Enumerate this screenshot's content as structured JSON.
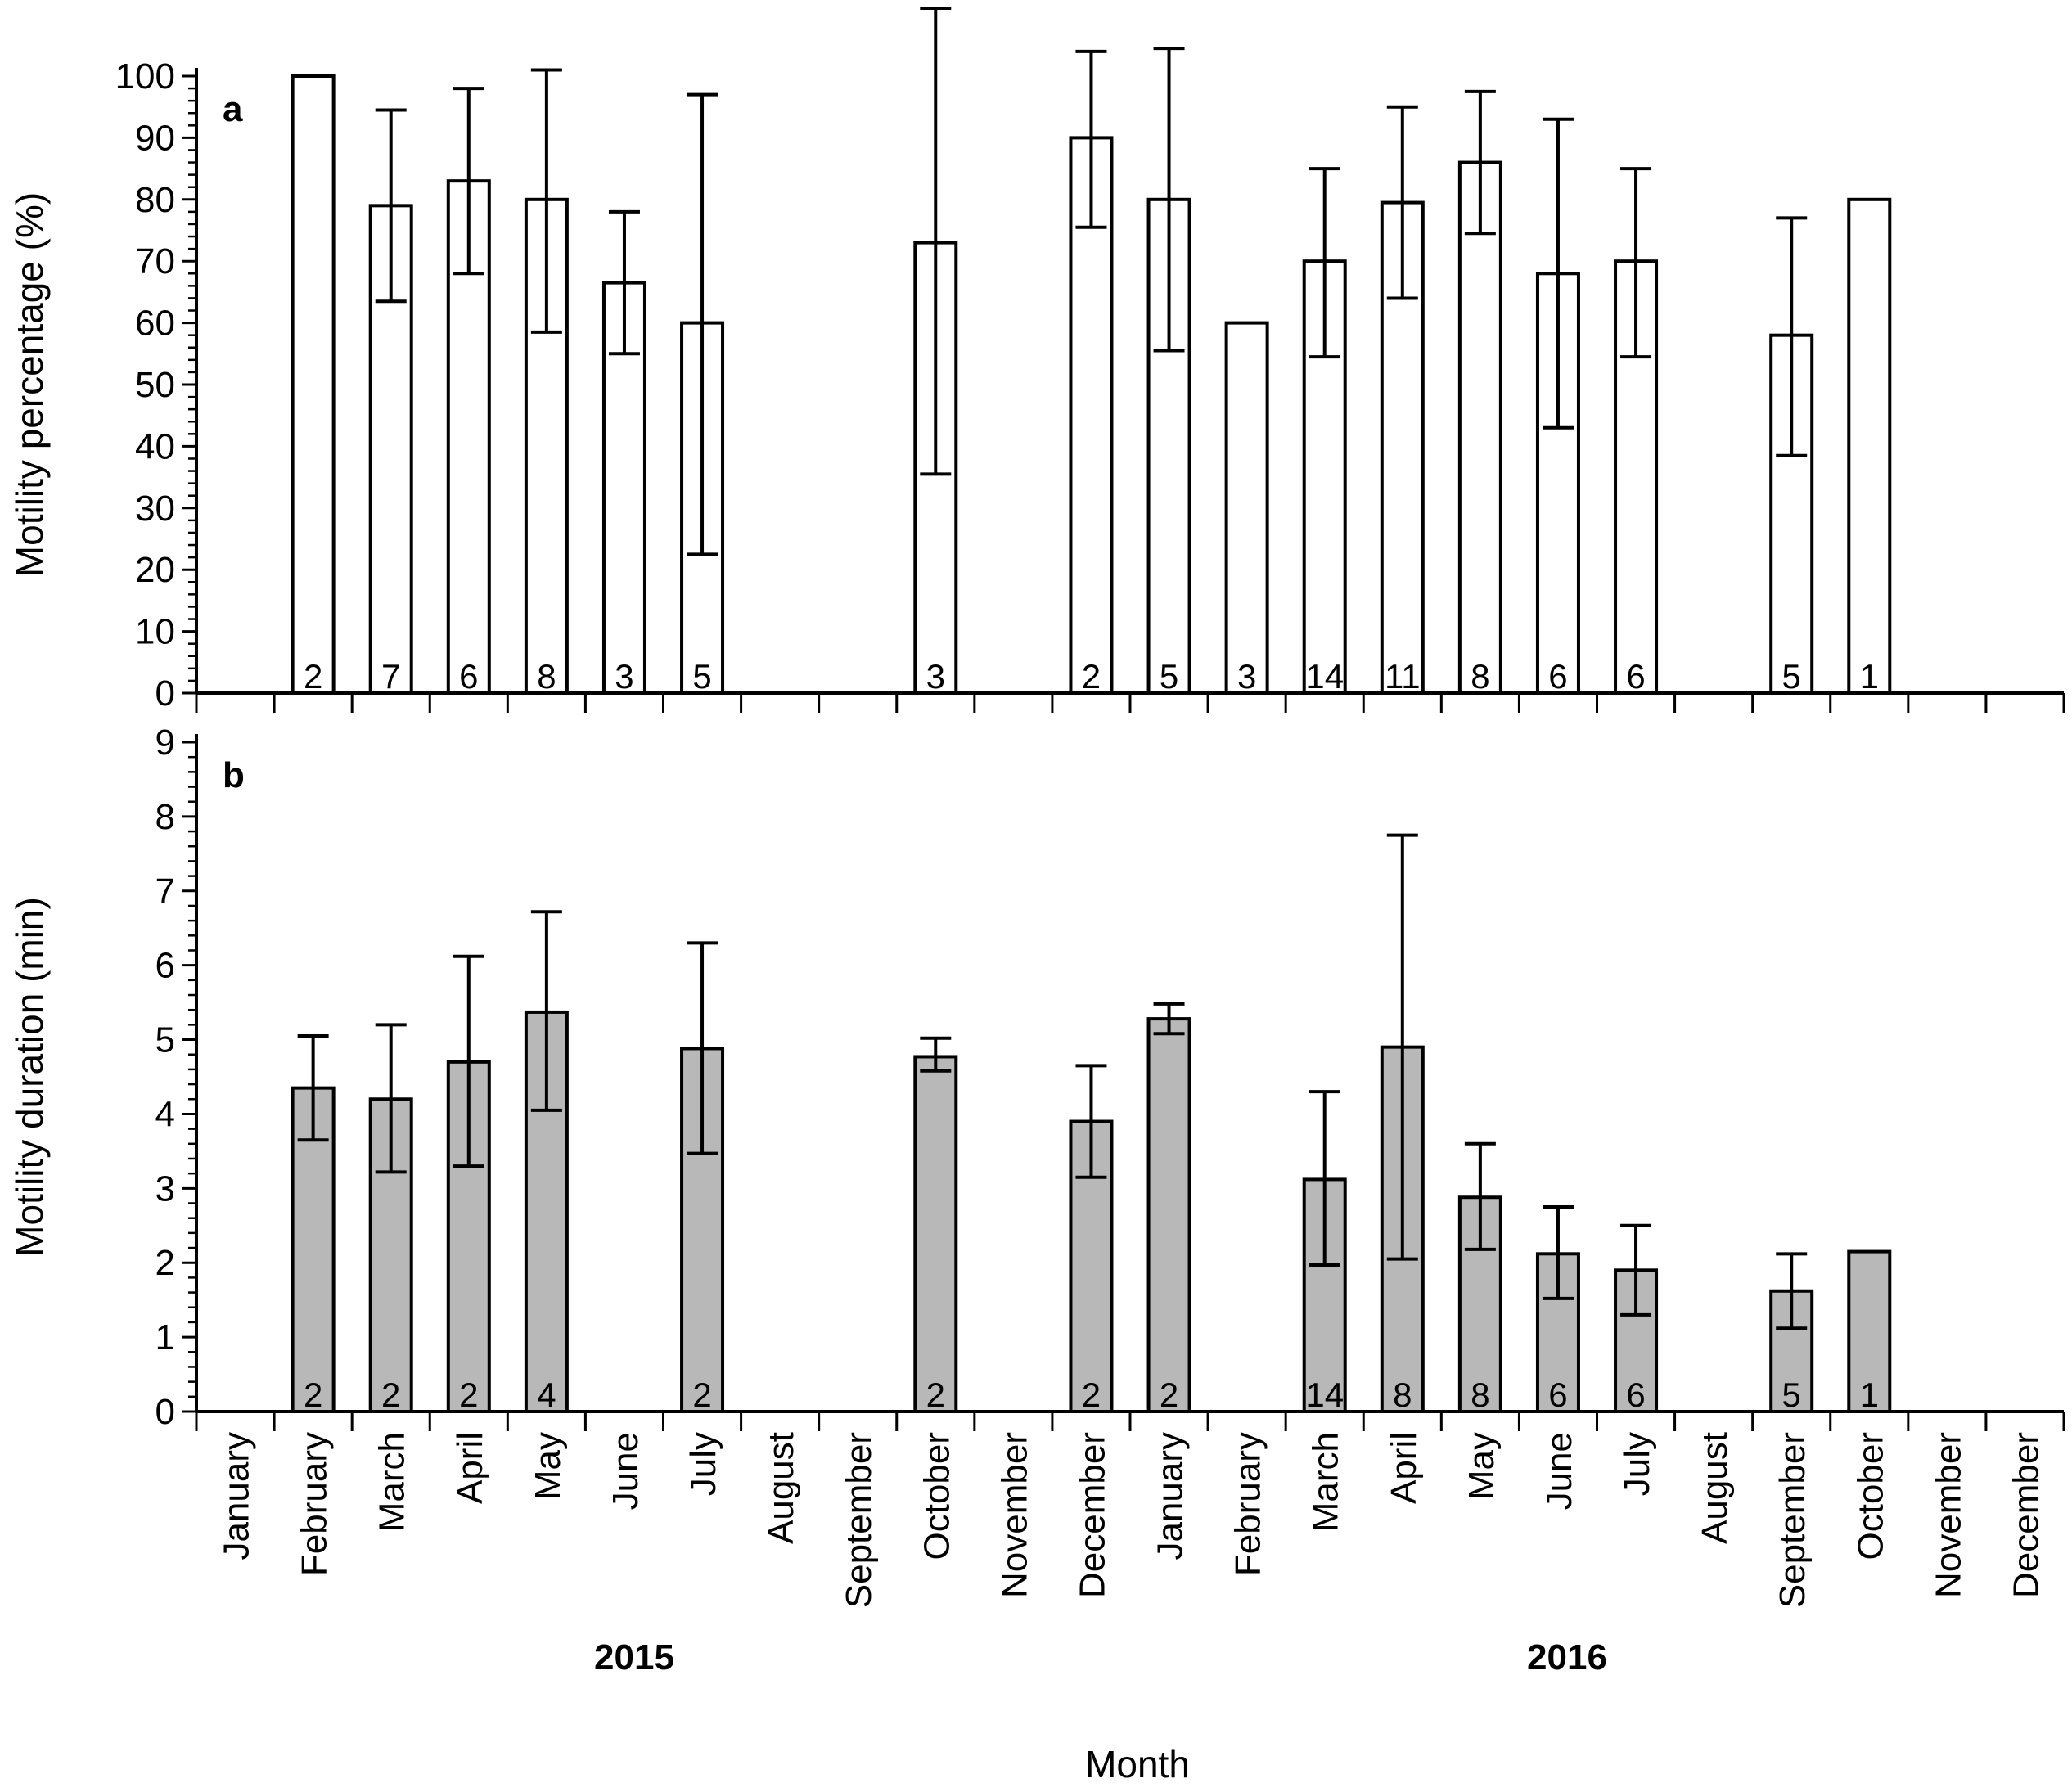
{
  "chart_data": [
    {
      "type": "bar",
      "panel_label": "a",
      "ylabel": "Motility percentage (%)",
      "ylim": [
        0,
        100
      ],
      "yticks": [
        0,
        10,
        20,
        30,
        40,
        50,
        60,
        70,
        80,
        90,
        100
      ],
      "bar_color": "#ffffff",
      "categories": [
        "January",
        "February",
        "March",
        "April",
        "May",
        "June",
        "July",
        "August",
        "September",
        "October",
        "November",
        "December",
        "January",
        "February",
        "March",
        "April",
        "May",
        "June",
        "July",
        "August",
        "September",
        "October",
        "November",
        "December"
      ],
      "values": [
        null,
        100,
        79,
        83,
        80,
        66.5,
        60,
        null,
        null,
        73,
        null,
        90,
        80,
        60,
        70,
        79.5,
        86,
        68,
        70,
        null,
        58,
        80,
        null,
        null
      ],
      "error_upper": [
        null,
        null,
        94.5,
        98,
        101,
        78,
        97,
        null,
        null,
        111,
        null,
        104,
        104.5,
        null,
        85,
        95,
        97.5,
        93,
        85,
        null,
        77,
        null,
        null,
        null
      ],
      "error_lower": [
        null,
        null,
        63.5,
        68,
        58.5,
        55,
        22.5,
        null,
        null,
        35.5,
        null,
        75.5,
        55.5,
        null,
        54.5,
        64,
        74.5,
        43,
        54.5,
        null,
        38.5,
        null,
        null,
        null
      ],
      "n": [
        "",
        "2",
        "7",
        "6",
        "8",
        "3",
        "5",
        "",
        "",
        "3",
        "",
        "2",
        "5",
        "3",
        "14",
        "11",
        "8",
        "6",
        "6",
        "",
        "5",
        "1",
        "",
        ""
      ]
    },
    {
      "type": "bar",
      "panel_label": "b",
      "ylabel": "Motility duration (min)",
      "ylim": [
        0,
        9
      ],
      "yticks": [
        0,
        1,
        2,
        3,
        4,
        5,
        6,
        7,
        8,
        9
      ],
      "bar_color": "#b8b8b8",
      "categories": [
        "January",
        "February",
        "March",
        "April",
        "May",
        "June",
        "July",
        "August",
        "September",
        "October",
        "November",
        "December",
        "January",
        "February",
        "March",
        "April",
        "May",
        "June",
        "July",
        "August",
        "September",
        "October",
        "November",
        "December"
      ],
      "values": [
        null,
        4.35,
        4.2,
        4.7,
        5.37,
        null,
        4.88,
        null,
        null,
        4.77,
        null,
        3.9,
        5.28,
        null,
        3.12,
        4.9,
        2.88,
        2.12,
        1.9,
        null,
        1.62,
        2.15,
        null,
        null
      ],
      "error_upper": [
        null,
        5.05,
        5.2,
        6.12,
        6.72,
        null,
        6.3,
        null,
        null,
        5.02,
        null,
        4.65,
        5.48,
        null,
        4.3,
        7.75,
        3.6,
        2.75,
        2.5,
        null,
        2.12,
        null,
        null,
        null
      ],
      "error_lower": [
        null,
        3.65,
        3.22,
        3.3,
        4.05,
        null,
        3.47,
        null,
        null,
        4.58,
        null,
        3.15,
        5.08,
        null,
        1.97,
        2.05,
        2.18,
        1.52,
        1.3,
        null,
        1.12,
        null,
        null,
        null
      ],
      "n": [
        "",
        "2",
        "2",
        "2",
        "4",
        "",
        "2",
        "",
        "",
        "2",
        "",
        "2",
        "2",
        "",
        "14",
        "8",
        "8",
        "6",
        "6",
        "",
        "5",
        "1",
        "",
        ""
      ]
    }
  ],
  "xlabel": "Month",
  "years": [
    "2015",
    "2016"
  ]
}
